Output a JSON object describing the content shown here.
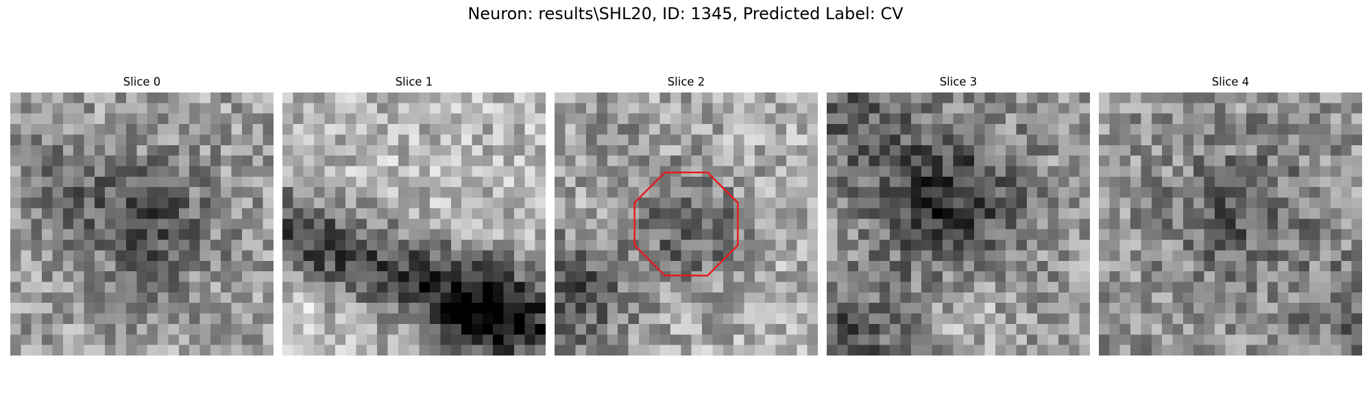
{
  "figure": {
    "title": "Neuron: results\\SHL20, ID: 1345, Predicted Label: CV"
  },
  "slices": [
    {
      "title": "Slice 0",
      "image": "grayscale-noise-patch-dark-band-center"
    },
    {
      "title": "Slice 1",
      "image": "grayscale-noise-patch-bright-top-dark-bottom"
    },
    {
      "title": "Slice 2",
      "image": "grayscale-noise-patch-dark-blob-with-red-outline",
      "annotation": {
        "shape": "octagon",
        "color": "#e8191c"
      }
    },
    {
      "title": "Slice 3",
      "image": "grayscale-noise-patch-dark-round-center"
    },
    {
      "title": "Slice 4",
      "image": "grayscale-noise-patch-dark-center-noisy"
    }
  ],
  "colors": {
    "annotation": "#e8191c"
  }
}
